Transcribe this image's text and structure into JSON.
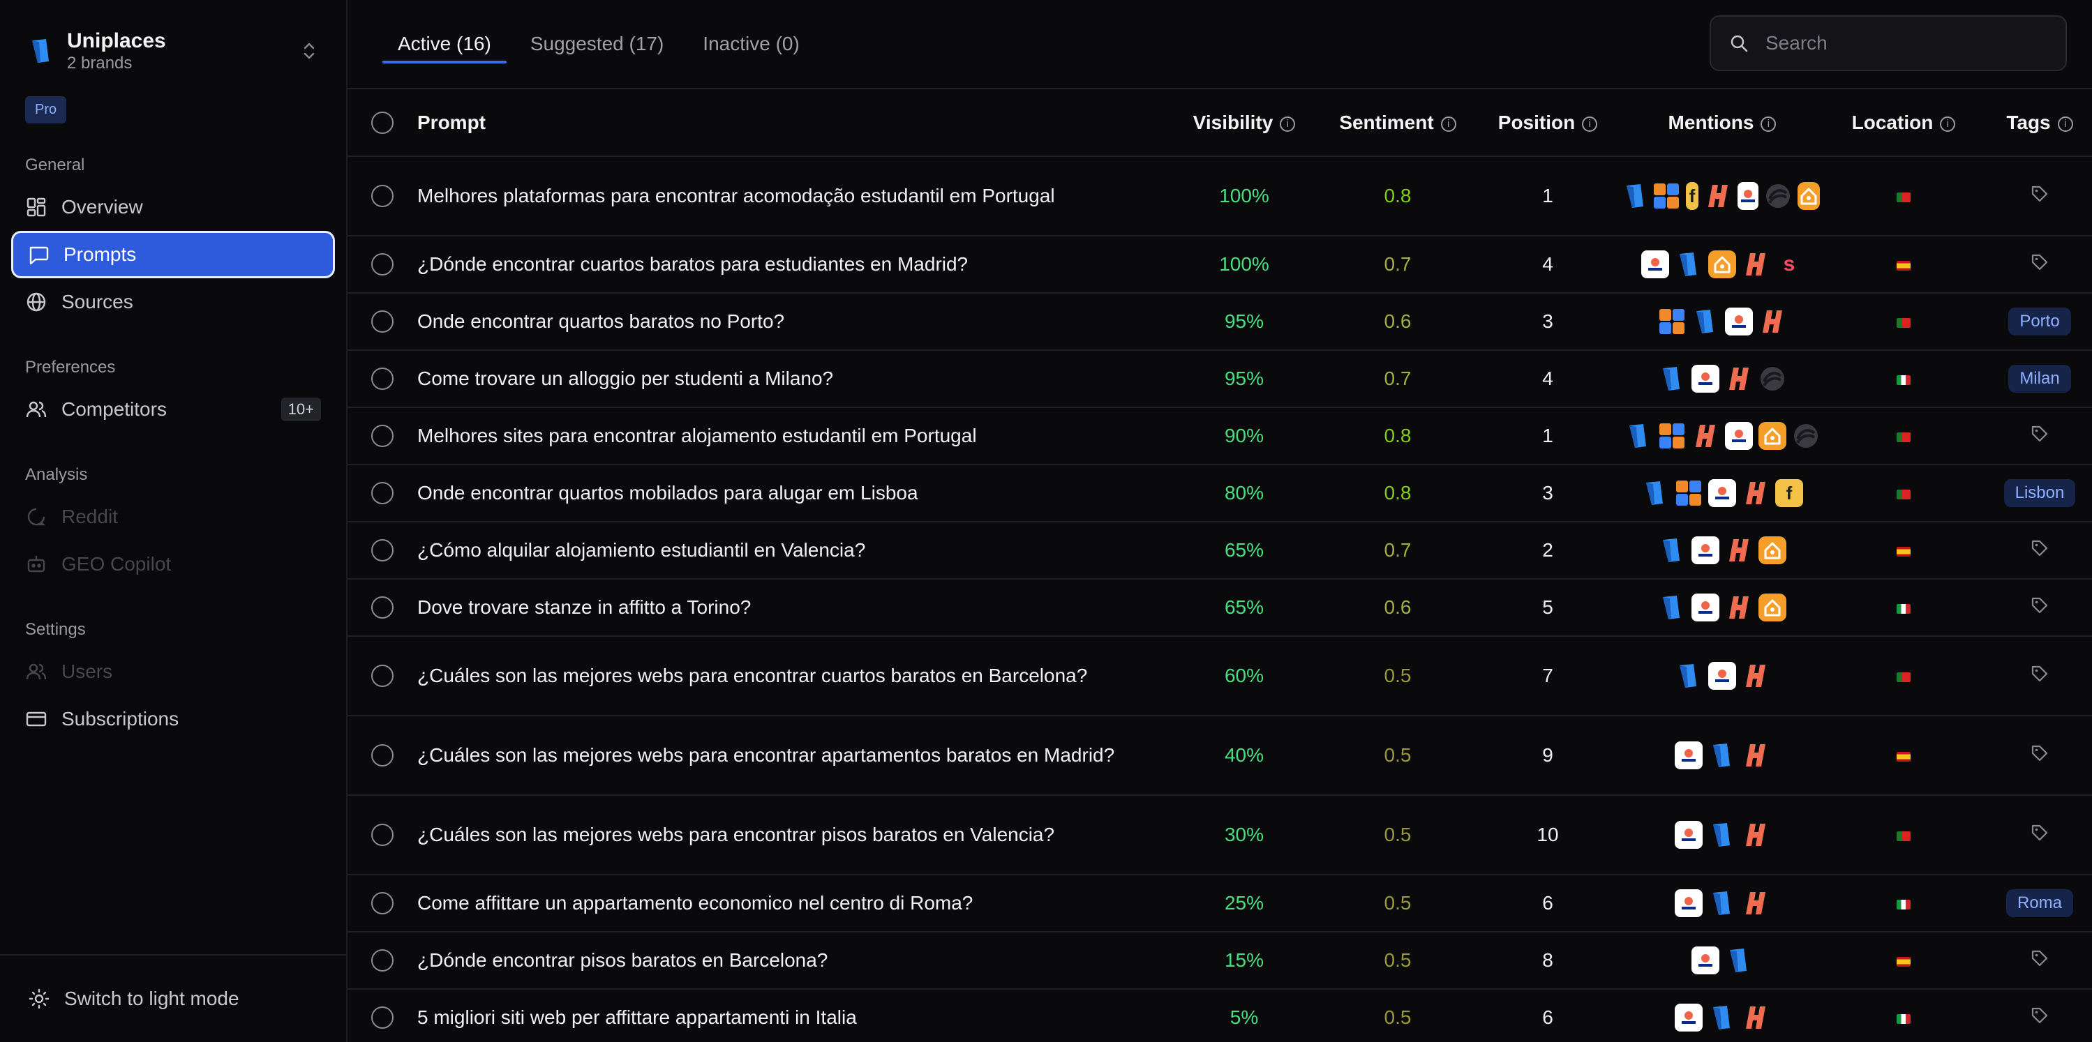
{
  "sidebar": {
    "brand_name": "Uniplaces",
    "brand_sub": "2 brands",
    "plan_badge": "Pro",
    "sections": [
      {
        "title": "General"
      },
      {
        "title": "Preferences"
      },
      {
        "title": "Analysis"
      },
      {
        "title": "Settings"
      }
    ],
    "items": {
      "overview": "Overview",
      "prompts": "Prompts",
      "sources": "Sources",
      "competitors": "Competitors",
      "competitors_count": "10+",
      "reddit": "Reddit",
      "geo_copilot": "GEO Copilot",
      "users": "Users",
      "subscriptions": "Subscriptions"
    },
    "footer": "Switch to light mode"
  },
  "tabs": {
    "active": "Active (16)",
    "suggested": "Suggested (17)",
    "inactive": "Inactive (0)"
  },
  "search": {
    "placeholder": "Search",
    "value": ""
  },
  "table": {
    "headers": {
      "prompt": "Prompt",
      "visibility": "Visibility",
      "sentiment": "Sentiment",
      "position": "Position",
      "mentions": "Mentions",
      "location": "Location",
      "tags": "Tags"
    },
    "rows": [
      {
        "prompt": "Melhores plataformas para encontrar acomodação estudantil em Portugal",
        "visibility": "100%",
        "sentiment": "0.8",
        "position": "1",
        "mentions": [
          "uniplaces",
          "grid",
          "spotahome-f",
          "housinganywhere",
          "erasmusu",
          "studapart",
          "homelike"
        ],
        "flag": "pt",
        "tag": ""
      },
      {
        "prompt": "¿Dónde encontrar cuartos baratos para estudiantes en Madrid?",
        "visibility": "100%",
        "sentiment": "0.7",
        "position": "4",
        "mentions": [
          "erasmusu",
          "uniplaces",
          "homelike",
          "housinganywhere",
          "s-logo"
        ],
        "flag": "es",
        "tag": ""
      },
      {
        "prompt": "Onde encontrar quartos baratos no Porto?",
        "visibility": "95%",
        "sentiment": "0.6",
        "position": "3",
        "mentions": [
          "grid",
          "uniplaces",
          "erasmusu",
          "housinganywhere"
        ],
        "flag": "pt",
        "tag": "Porto"
      },
      {
        "prompt": "Come trovare un alloggio per studenti a Milano?",
        "visibility": "95%",
        "sentiment": "0.7",
        "position": "4",
        "mentions": [
          "uniplaces",
          "erasmusu",
          "housinganywhere",
          "studapart"
        ],
        "flag": "it",
        "tag": "Milan"
      },
      {
        "prompt": "Melhores sites para encontrar alojamento estudantil em Portugal",
        "visibility": "90%",
        "sentiment": "0.8",
        "position": "1",
        "mentions": [
          "uniplaces",
          "grid",
          "housinganywhere",
          "erasmusu",
          "homelike",
          "studapart"
        ],
        "flag": "pt",
        "tag": ""
      },
      {
        "prompt": "Onde encontrar quartos mobilados para alugar em Lisboa",
        "visibility": "80%",
        "sentiment": "0.8",
        "position": "3",
        "mentions": [
          "uniplaces",
          "grid",
          "erasmusu",
          "housinganywhere",
          "spotahome-f"
        ],
        "flag": "pt",
        "tag": "Lisbon"
      },
      {
        "prompt": "¿Cómo alquilar alojamiento estudiantil en Valencia?",
        "visibility": "65%",
        "sentiment": "0.7",
        "position": "2",
        "mentions": [
          "uniplaces",
          "erasmusu",
          "housinganywhere",
          "homelike"
        ],
        "flag": "es",
        "tag": ""
      },
      {
        "prompt": "Dove trovare stanze in affitto a Torino?",
        "visibility": "65%",
        "sentiment": "0.6",
        "position": "5",
        "mentions": [
          "uniplaces",
          "erasmusu",
          "housinganywhere",
          "homelike"
        ],
        "flag": "it",
        "tag": ""
      },
      {
        "prompt": "¿Cuáles son las mejores webs para encontrar cuartos baratos en Barcelona?",
        "visibility": "60%",
        "sentiment": "0.5",
        "position": "7",
        "mentions": [
          "uniplaces",
          "erasmusu",
          "housinganywhere"
        ],
        "flag": "pt",
        "tag": ""
      },
      {
        "prompt": "¿Cuáles son las mejores webs para encontrar apartamentos baratos en Madrid?",
        "visibility": "40%",
        "sentiment": "0.5",
        "position": "9",
        "mentions": [
          "erasmusu",
          "uniplaces",
          "housinganywhere"
        ],
        "flag": "es",
        "tag": ""
      },
      {
        "prompt": "¿Cuáles son las mejores webs para encontrar pisos baratos en Valencia?",
        "visibility": "30%",
        "sentiment": "0.5",
        "position": "10",
        "mentions": [
          "erasmusu",
          "uniplaces",
          "housinganywhere"
        ],
        "flag": "pt",
        "tag": ""
      },
      {
        "prompt": "Come affittare un appartamento economico nel centro di Roma?",
        "visibility": "25%",
        "sentiment": "0.5",
        "position": "6",
        "mentions": [
          "erasmusu",
          "uniplaces",
          "housinganywhere"
        ],
        "flag": "it",
        "tag": "Roma"
      },
      {
        "prompt": "¿Dónde encontrar pisos baratos en Barcelona?",
        "visibility": "15%",
        "sentiment": "0.5",
        "position": "8",
        "mentions": [
          "erasmusu",
          "uniplaces"
        ],
        "flag": "es",
        "tag": ""
      },
      {
        "prompt": "5 migliori siti web per affittare appartamenti in Italia",
        "visibility": "5%",
        "sentiment": "0.5",
        "position": "6",
        "mentions": [
          "erasmusu",
          "uniplaces",
          "housinganywhere"
        ],
        "flag": "it",
        "tag": ""
      }
    ]
  },
  "colors": {
    "accent": "#2d5bdb",
    "visibility_green": "#4ade80",
    "sentiment_high": "#84cc16",
    "sentiment_mid": "#a3b03c",
    "sentiment_low": "#9a9a3a"
  }
}
